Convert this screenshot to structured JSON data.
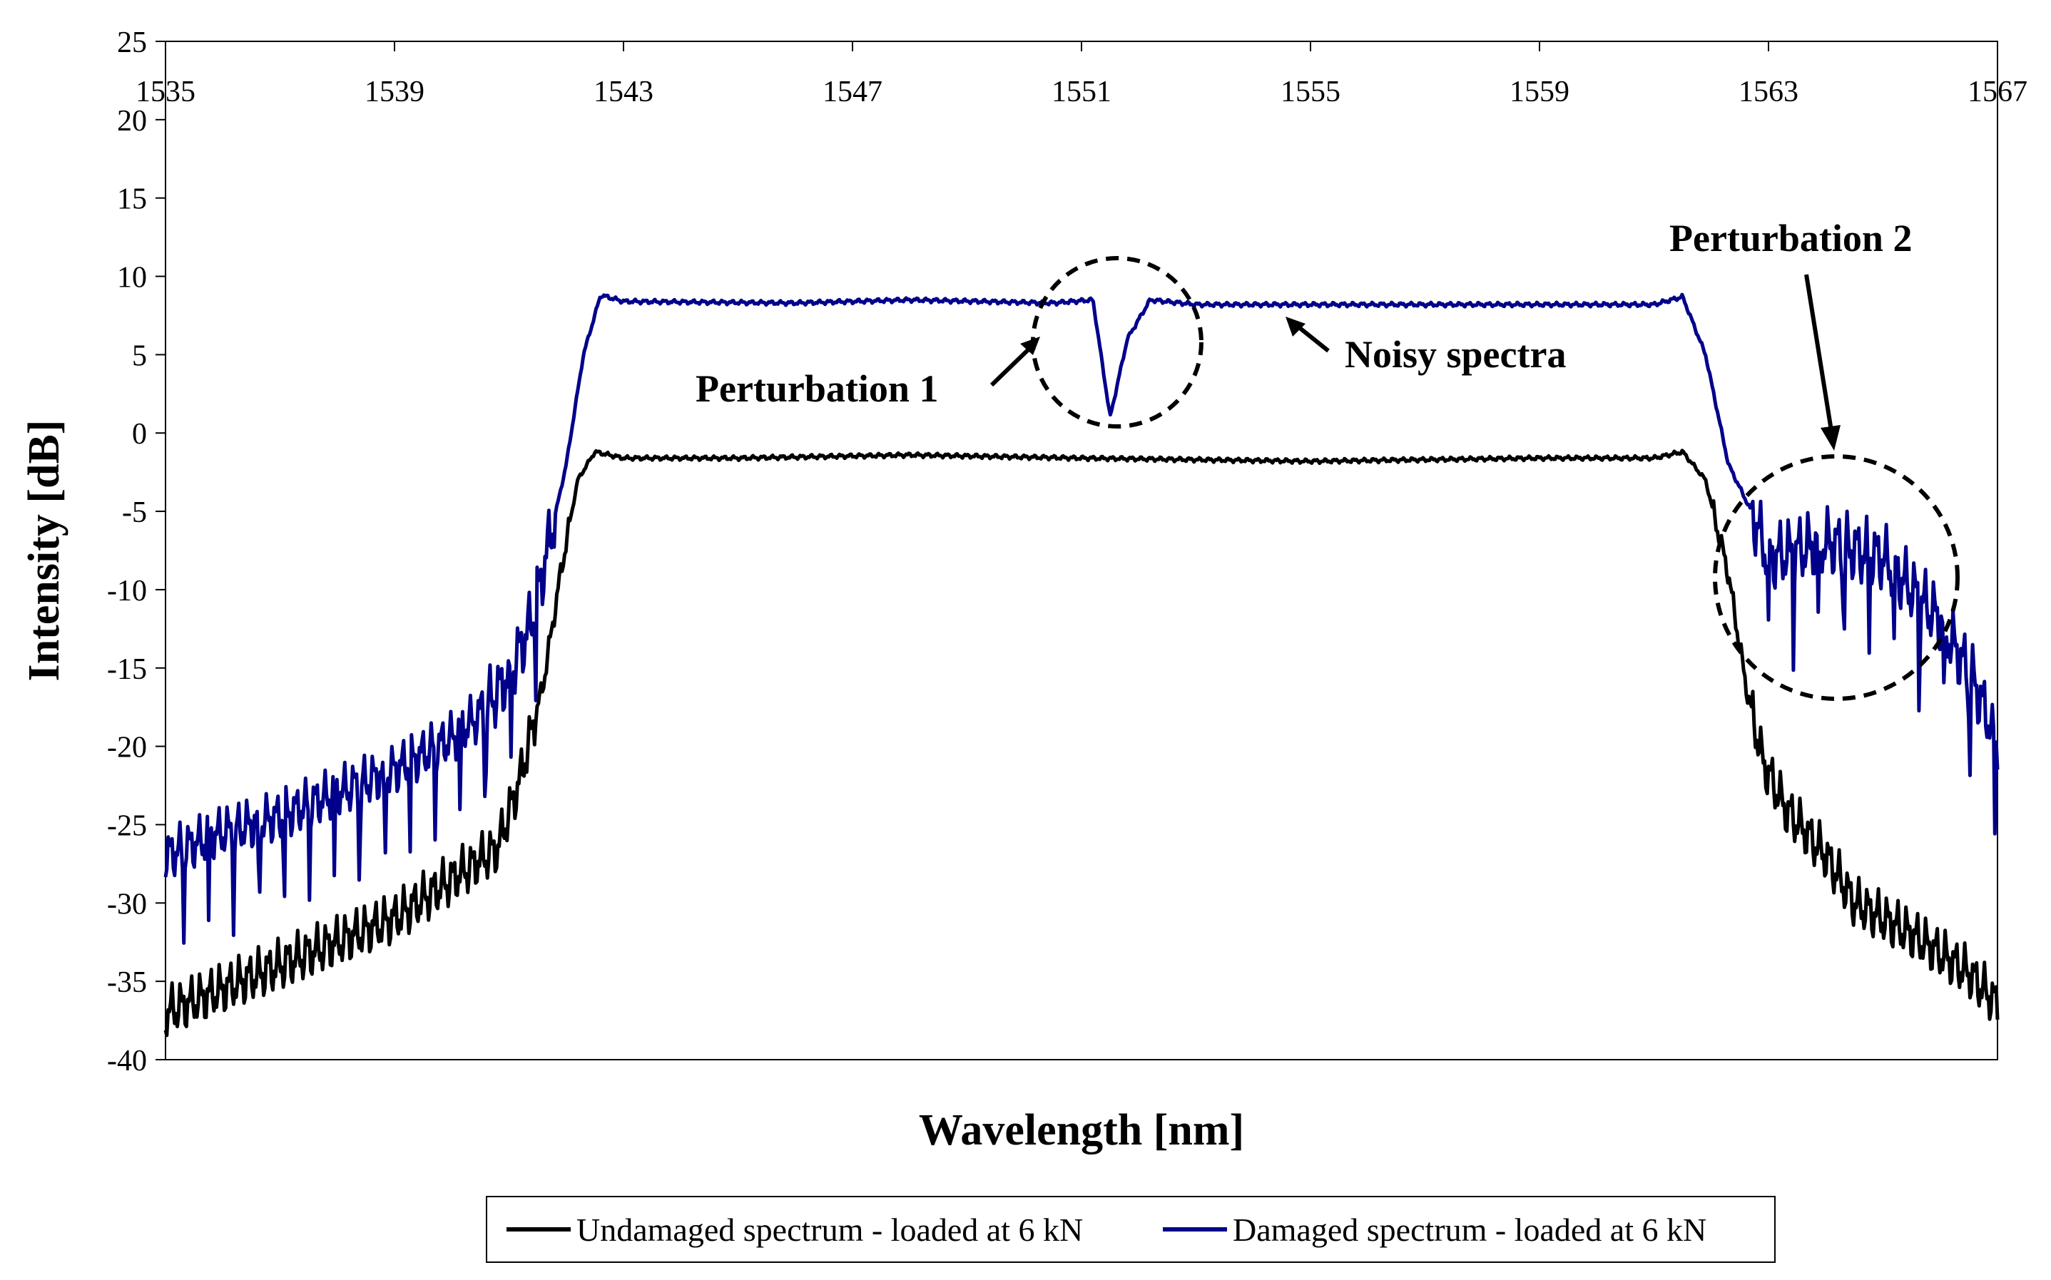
{
  "chart_data": {
    "type": "line",
    "title": "",
    "xlabel": "Wavelength [nm]",
    "ylabel": "Intensity [dB]",
    "xlim": [
      1535,
      1567
    ],
    "ylim": [
      -40,
      25
    ],
    "x_ticks": [
      "1535",
      "1539",
      "1543",
      "1547",
      "1551",
      "1555",
      "1559",
      "1563",
      "1567"
    ],
    "y_ticks": [
      "25",
      "20",
      "15",
      "10",
      "5",
      "0",
      "-5",
      "-10",
      "-15",
      "-20",
      "-25",
      "-30",
      "-35",
      "-40"
    ],
    "series": [
      {
        "name": "Undamaged spectrum - loaded at 6 kN",
        "color": "#000000",
        "points": [
          [
            1535,
            -37
          ],
          [
            1536,
            -35.5
          ],
          [
            1537,
            -34
          ],
          [
            1538,
            -32.5
          ],
          [
            1539,
            -31
          ],
          [
            1540,
            -28.5
          ],
          [
            1540.8,
            -26.5
          ],
          [
            1541.2,
            -22
          ],
          [
            1541.6,
            -16
          ],
          [
            1541.9,
            -9
          ],
          [
            1542.2,
            -3
          ],
          [
            1542.5,
            -1.2
          ],
          [
            1543,
            -1.6
          ],
          [
            1545,
            -1.6
          ],
          [
            1548,
            -1.4
          ],
          [
            1551,
            -1.6
          ],
          [
            1555,
            -1.8
          ],
          [
            1559,
            -1.6
          ],
          [
            1561,
            -1.6
          ],
          [
            1561.5,
            -1.2
          ],
          [
            1561.9,
            -3
          ],
          [
            1562.3,
            -9
          ],
          [
            1562.6,
            -16
          ],
          [
            1562.9,
            -21
          ],
          [
            1563.3,
            -24
          ],
          [
            1564,
            -27
          ],
          [
            1564.5,
            -30
          ],
          [
            1565.5,
            -32
          ],
          [
            1566.5,
            -34.5
          ],
          [
            1567,
            -36.5
          ]
        ]
      },
      {
        "name": "Damaged spectrum - loaded at 6 kN",
        "color": "#00008B",
        "points": [
          [
            1535,
            -27
          ],
          [
            1536,
            -25.5
          ],
          [
            1537,
            -24.5
          ],
          [
            1538,
            -23
          ],
          [
            1539,
            -21.5
          ],
          [
            1540,
            -19.5
          ],
          [
            1540.5,
            -18
          ],
          [
            1541,
            -15.5
          ],
          [
            1541.4,
            -12
          ],
          [
            1541.7,
            -7
          ],
          [
            1542,
            -2
          ],
          [
            1542.3,
            5
          ],
          [
            1542.6,
            8.8
          ],
          [
            1543,
            8.4
          ],
          [
            1546,
            8.3
          ],
          [
            1548,
            8.5
          ],
          [
            1550.5,
            8.3
          ],
          [
            1551.2,
            8.5
          ],
          [
            1551.5,
            1
          ],
          [
            1551.8,
            6
          ],
          [
            1552.2,
            8.5
          ],
          [
            1553,
            8.2
          ],
          [
            1555,
            8.2
          ],
          [
            1559,
            8.2
          ],
          [
            1561,
            8.2
          ],
          [
            1561.5,
            8.7
          ],
          [
            1561.9,
            5
          ],
          [
            1562.3,
            -2
          ],
          [
            1562.7,
            -5
          ],
          [
            1563,
            -8
          ],
          [
            1564,
            -7
          ],
          [
            1565,
            -8
          ],
          [
            1566,
            -12
          ],
          [
            1566.6,
            -16
          ],
          [
            1567,
            -20
          ]
        ]
      }
    ],
    "annotations": [
      {
        "label": "Perturbation 1"
      },
      {
        "label": "Noisy spectra"
      },
      {
        "label": "Perturbation 2"
      }
    ]
  },
  "legend": {
    "items": [
      {
        "label": "Undamaged spectrum - loaded at 6 kN",
        "color": "#000000"
      },
      {
        "label": "Damaged spectrum - loaded at 6 kN",
        "color": "#00008B"
      }
    ]
  }
}
